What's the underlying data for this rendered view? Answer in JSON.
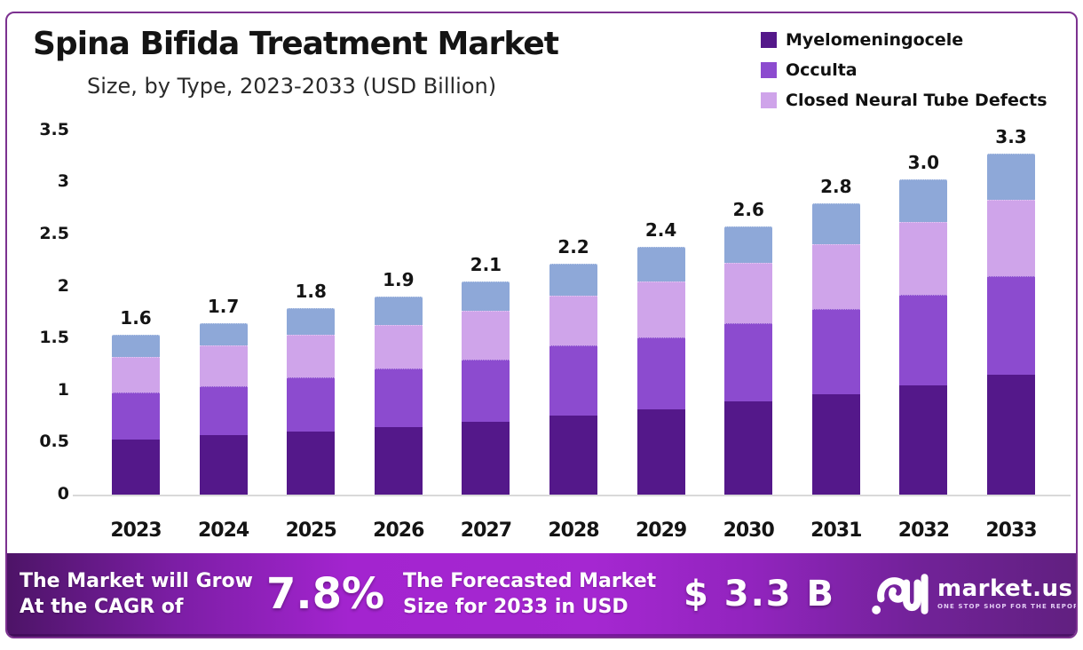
{
  "title": "Spina Bifida Treatment Market",
  "subtitle": "Size, by Type, 2023-2033 (USD Billion)",
  "legend": [
    {
      "label": "Myelomeningocele",
      "color": "#54188a"
    },
    {
      "label": "Occulta",
      "color": "#8c4bcf"
    },
    {
      "label": "Closed Neural Tube Defects",
      "color": "#cfa4ea"
    }
  ],
  "chart_data": {
    "type": "bar",
    "stacked": true,
    "title": "Spina Bifida Treatment Market Size, by Type, 2023-2033 (USD Billion)",
    "categories": [
      "2023",
      "2024",
      "2025",
      "2026",
      "2027",
      "2028",
      "2029",
      "2030",
      "2031",
      "2032",
      "2033"
    ],
    "series": [
      {
        "name": "Myelomeningocele",
        "color": "#54188a",
        "values": [
          0.53,
          0.57,
          0.61,
          0.65,
          0.7,
          0.76,
          0.82,
          0.9,
          0.96,
          1.05,
          1.15
        ]
      },
      {
        "name": "Occulta",
        "color": "#8c4bcf",
        "values": [
          0.45,
          0.47,
          0.52,
          0.56,
          0.6,
          0.67,
          0.69,
          0.75,
          0.82,
          0.87,
          0.95
        ]
      },
      {
        "name": "Closed Neural Tube Defects",
        "color": "#cfa4ea",
        "values": [
          0.34,
          0.39,
          0.41,
          0.42,
          0.47,
          0.48,
          0.54,
          0.58,
          0.63,
          0.7,
          0.73
        ]
      },
      {
        "name": "unlabeled-top-segment",
        "color": "#8ea8d8",
        "in_legend": false,
        "values": [
          0.22,
          0.22,
          0.25,
          0.27,
          0.28,
          0.31,
          0.33,
          0.35,
          0.39,
          0.41,
          0.45
        ]
      }
    ],
    "total_labels": [
      "1.6",
      "1.7",
      "1.8",
      "1.9",
      "2.1",
      "2.2",
      "2.4",
      "2.6",
      "2.8",
      "3.0",
      "3.3"
    ],
    "yticks": [
      0,
      0.5,
      1,
      1.5,
      2,
      2.5,
      3,
      3.5
    ],
    "ylim": [
      0,
      3.5
    ],
    "xlabel": "",
    "ylabel": "",
    "grid": false,
    "legend_position": "top-right"
  },
  "banner": {
    "cagr_line1": "The Market will Grow",
    "cagr_line2": "At the CAGR of",
    "cagr_value": "7.8%",
    "forecast_line1": "The Forecasted Market",
    "forecast_line2": "Size for 2033 in USD",
    "forecast_value": "$ 3.3 B",
    "logo_text": "market.us",
    "logo_tagline": "ONE STOP SHOP FOR THE REPORTS"
  },
  "colors": {
    "card_border": "#7c3190",
    "banner_center": "#a527d1",
    "banner_edge": "#4d1467",
    "axis_line": "#d9d9d9",
    "text": "#141414"
  }
}
